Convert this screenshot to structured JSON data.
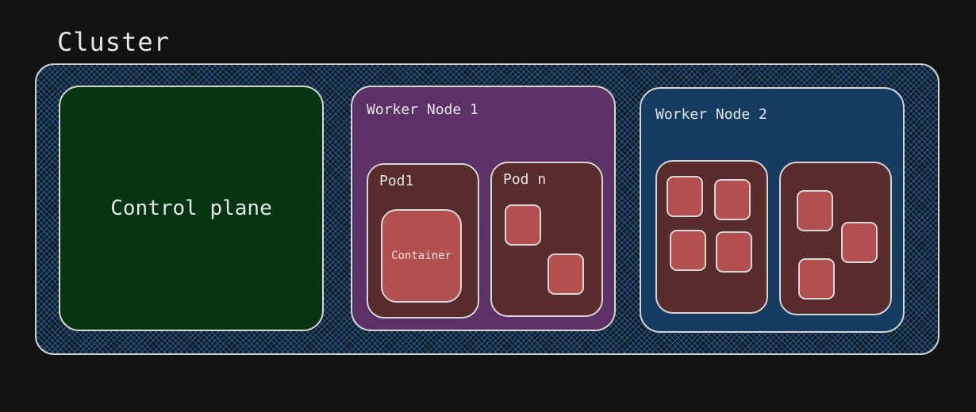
{
  "cluster": {
    "title": "Cluster"
  },
  "control_plane": {
    "label": "Control plane"
  },
  "worker_nodes": [
    {
      "label": "Worker Node 1",
      "pods": [
        {
          "label": "Pod1",
          "containers": [
            {
              "label": "Container"
            }
          ]
        },
        {
          "label": "Pod n",
          "container_count": 2
        }
      ]
    },
    {
      "label": "Worker Node 2",
      "pods": [
        {
          "label": "",
          "container_count": 4
        },
        {
          "label": "",
          "container_count": 3
        }
      ]
    }
  ],
  "colors": {
    "background": "#121212",
    "cluster_hatch": "#286eaa",
    "control_plane": "#063511",
    "worker_node_1": "#5b3166",
    "worker_node_2": "#153d61",
    "pod": "#592c2c",
    "container": "#b34f4f",
    "border": "#d6d6d6"
  }
}
